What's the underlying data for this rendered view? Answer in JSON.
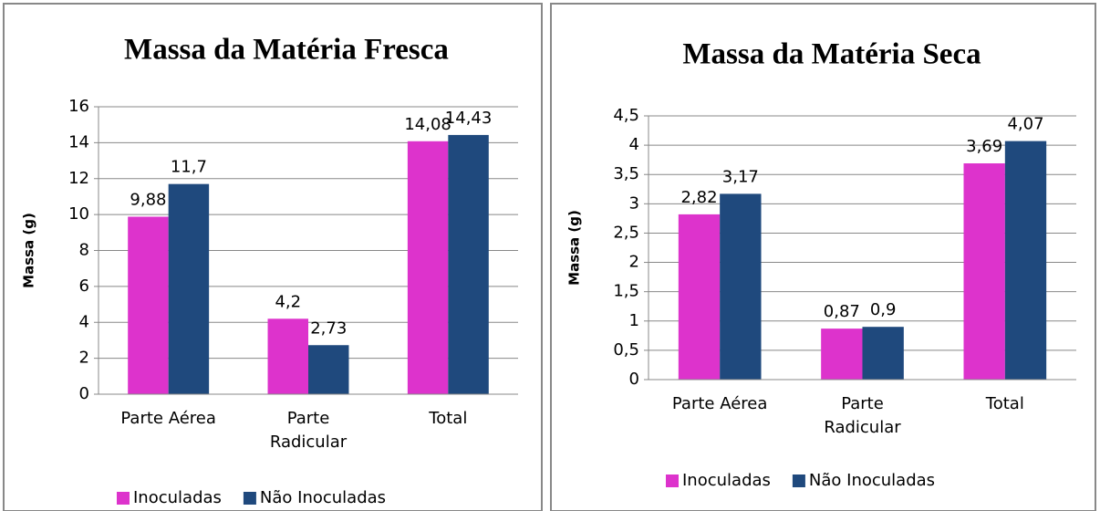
{
  "chart_data": [
    {
      "type": "bar",
      "title": "Massa da Matéria Fresca",
      "ylabel": "Massa (g)",
      "categories": [
        "Parte Aérea",
        "Parte Radicular",
        "Total"
      ],
      "series": [
        {
          "name": "Inoculadas",
          "color": "#dd33cc",
          "values": [
            9.88,
            4.2,
            14.08
          ],
          "value_labels": [
            "9,88",
            "4,2",
            "14,08"
          ]
        },
        {
          "name": "Não Inoculadas",
          "color": "#1f497d",
          "values": [
            11.7,
            2.73,
            14.43
          ],
          "value_labels": [
            "11,7",
            "2,73",
            "14,43"
          ]
        }
      ],
      "ylim": [
        0,
        16
      ],
      "yticks": [
        0,
        2,
        4,
        6,
        8,
        10,
        12,
        14,
        16
      ],
      "grid": true,
      "legend": "bottom"
    },
    {
      "type": "bar",
      "title": "Massa da Matéria Seca",
      "ylabel": "Massa (g)",
      "categories": [
        "Parte Aérea",
        "Parte Radicular",
        "Total"
      ],
      "series": [
        {
          "name": "Inoculadas",
          "color": "#dd33cc",
          "values": [
            2.82,
            0.87,
            3.69
          ],
          "value_labels": [
            "2,82",
            "0,87",
            "3,69"
          ]
        },
        {
          "name": "Não Inoculadas",
          "color": "#1f497d",
          "values": [
            3.17,
            0.9,
            4.07
          ],
          "value_labels": [
            "3,17",
            "0,9",
            "4,07"
          ]
        }
      ],
      "ylim": [
        0,
        4.5
      ],
      "yticks": [
        0,
        {
          "value": 0.5,
          "label": "0,5"
        },
        1,
        {
          "value": 1.5,
          "label": "1,5"
        },
        2,
        {
          "value": 2.5,
          "label": "2,5"
        },
        3,
        {
          "value": 3.5,
          "label": "3,5"
        },
        4,
        {
          "value": 4.5,
          "label": "4,5"
        }
      ],
      "grid": true,
      "legend": "bottom"
    }
  ]
}
